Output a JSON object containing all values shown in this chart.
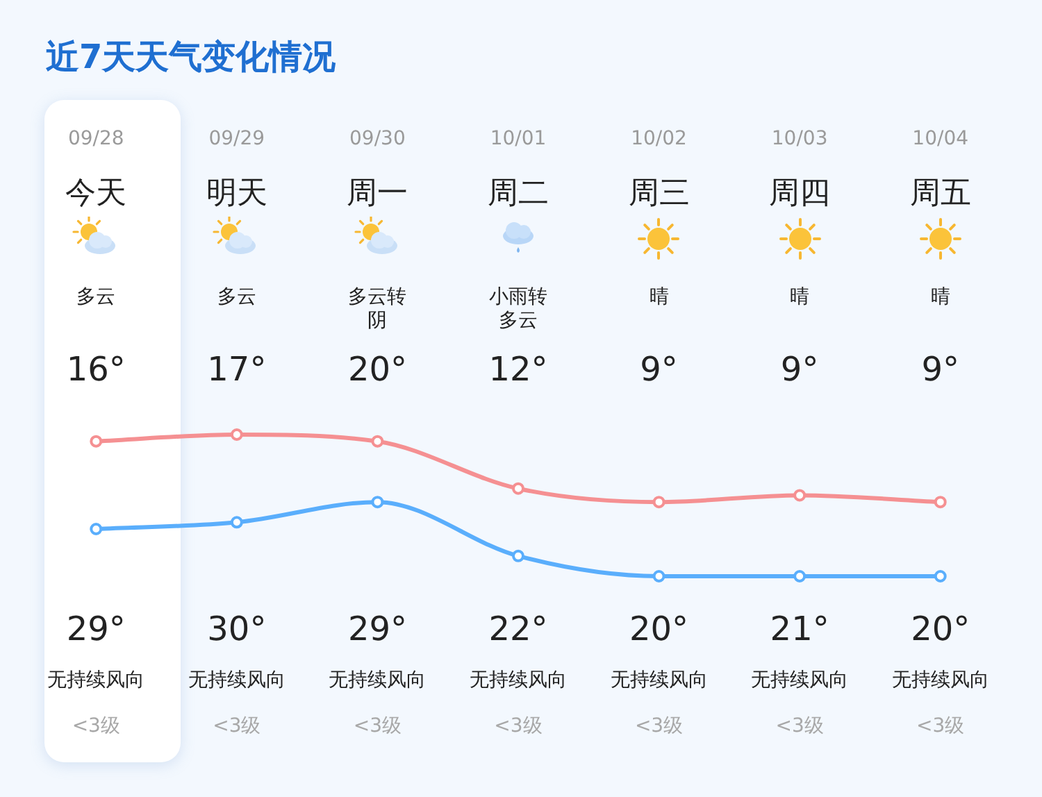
{
  "chart_data": {
    "type": "line",
    "title": "近7天天气变化情况",
    "categories": [
      "09/28",
      "09/29",
      "09/30",
      "10/01",
      "10/02",
      "10/03",
      "10/04"
    ],
    "series": [
      {
        "color": "#5aaefc",
        "values": [
          16,
          17,
          20,
          12,
          9,
          9,
          9
        ],
        "value_labels": [
          "16°",
          "17°",
          "20°",
          "12°",
          "9°",
          "9°",
          "9°"
        ]
      },
      {
        "color": "#f59092",
        "values": [
          29,
          30,
          29,
          22,
          20,
          21,
          20
        ],
        "value_labels": [
          "29°",
          "30°",
          "29°",
          "22°",
          "20°",
          "21°",
          "20°"
        ]
      }
    ],
    "annotations": [
      "今天",
      "明天",
      "周一",
      "周二",
      "周三",
      "周四",
      "周五",
      "多云",
      "多云",
      "多云转阴",
      "小雨转多云",
      "晴",
      "晴",
      "晴",
      "无持续风向",
      "无持续风向",
      "无持续风向",
      "无持续风向",
      "无持续风向",
      "无持续风向",
      "无持续风向",
      "<3级",
      "<3级",
      "<3级",
      "<3级",
      "<3级",
      "<3级",
      "<3级"
    ],
    "legend": false,
    "marker": "circle",
    "line_style": "solid"
  }
}
